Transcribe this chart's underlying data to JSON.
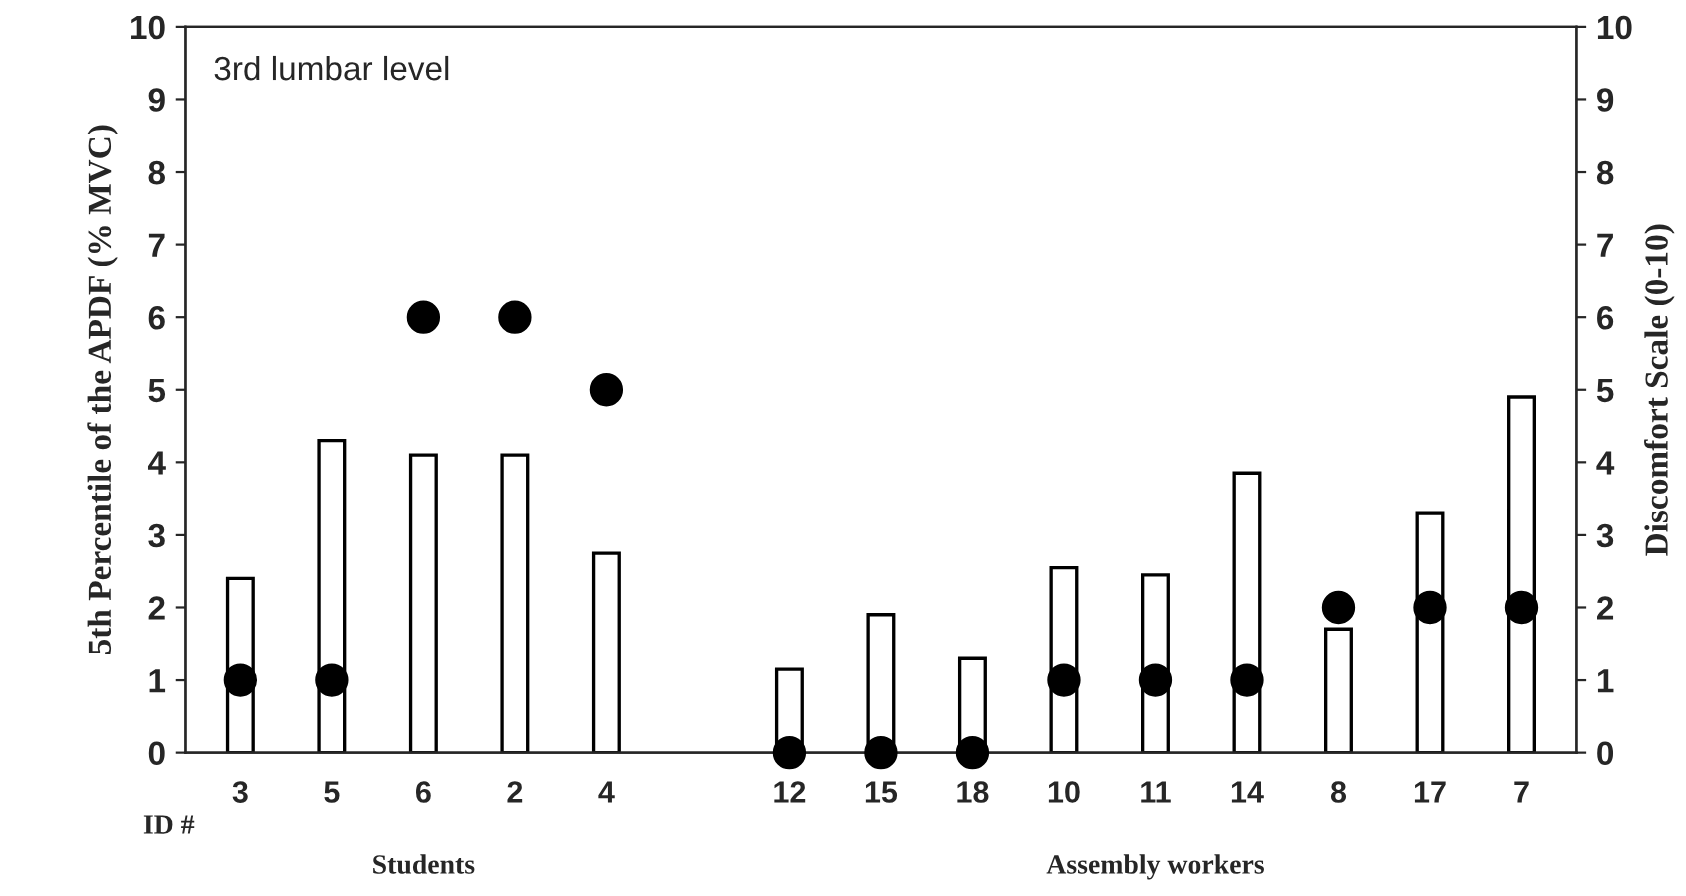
{
  "chart_data": {
    "type": "bar",
    "ylabel": "5th Percentile of the APDF (% MVC)",
    "y2label": "Discomfort Scale (0-10)",
    "categories": [
      "3",
      "5",
      "6",
      "2",
      "4",
      null,
      "12",
      "15",
      "18",
      "10",
      "11",
      "14",
      "8",
      "17",
      "7"
    ],
    "series": [
      {
        "color": "#ffffff",
        "values": [
          2.4,
          4.3,
          4.1,
          4.1,
          2.75,
          null,
          1.15,
          1.9,
          1.3,
          2.55,
          2.45,
          3.85,
          1.7,
          3.3,
          4.9
        ]
      },
      {
        "type": "scatter",
        "axis": "y2",
        "color": "#000000",
        "marker": "circle",
        "values": [
          1,
          1,
          6,
          6,
          5,
          null,
          0,
          0,
          0,
          1,
          1,
          1,
          2,
          2,
          2
        ]
      }
    ],
    "ylim": [
      0,
      10
    ],
    "yticks": [
      0,
      1,
      2,
      3,
      4,
      5,
      6,
      7,
      8,
      9,
      10
    ],
    "y2lim": [
      0,
      10
    ],
    "y2ticks": [
      0,
      1,
      2,
      3,
      4,
      5,
      6,
      7,
      8,
      9,
      10
    ],
    "grid": false,
    "legend": false,
    "annotations": [
      "3rd lumbar level",
      "ID #",
      "Students",
      "Assembly workers"
    ]
  }
}
